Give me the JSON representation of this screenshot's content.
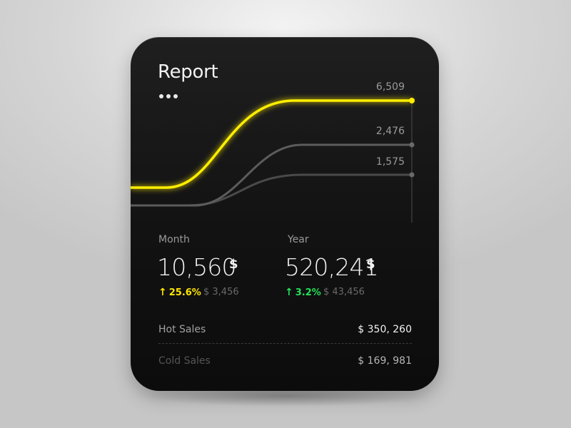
{
  "report": {
    "title": "Report",
    "chart": {
      "series": [
        {
          "end_value": "6,509",
          "color": "#ffee00"
        },
        {
          "end_value": "2,476",
          "color": "#5c5c5c"
        },
        {
          "end_value": "1,575",
          "color": "#4a4a4a"
        }
      ]
    },
    "month": {
      "label": "Month",
      "value": "10,560",
      "unit": "$",
      "change": "25.6%",
      "change_color": "#ffe600",
      "compare": "$ 3,456"
    },
    "year": {
      "label": "Year",
      "value": "520,241",
      "unit": "$",
      "change": "3.2%",
      "change_color": "#22e05a",
      "compare": "$ 43,456"
    },
    "rows": [
      {
        "label": "Hot Sales",
        "value": "$ 350, 260"
      },
      {
        "label": "Cold Sales",
        "value": "$ 169, 981"
      }
    ],
    "icons": {
      "more": "more-dots-icon",
      "up_arrow": "arrow-up-icon"
    }
  }
}
